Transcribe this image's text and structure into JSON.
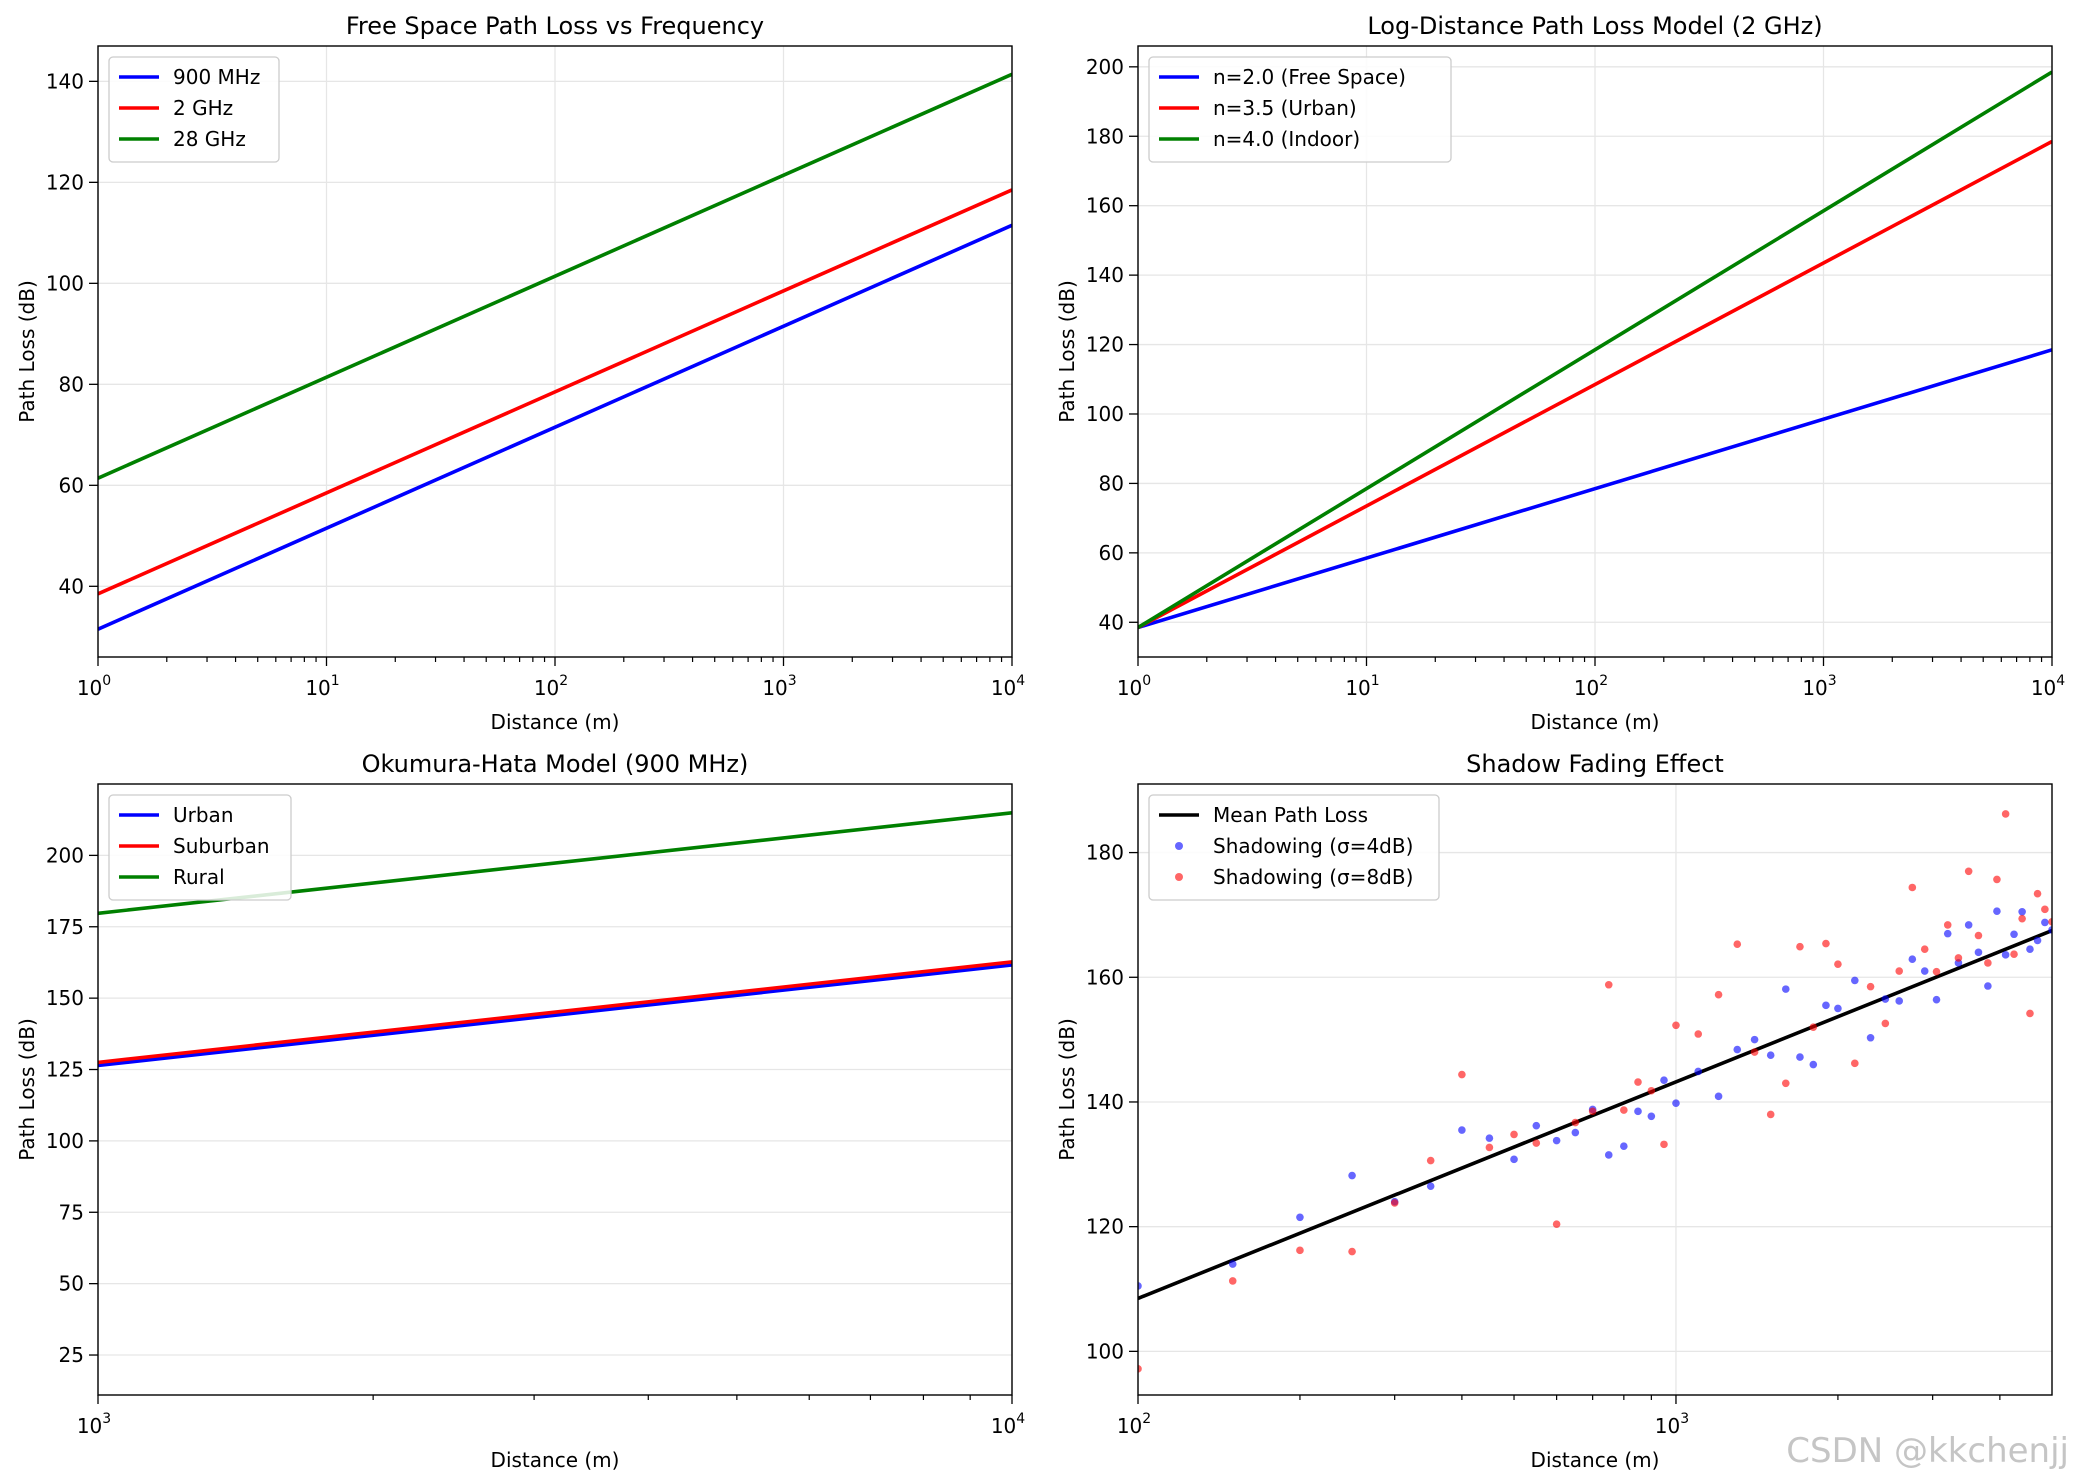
{
  "watermark": "CSDN @kkchenjj",
  "colors": {
    "blue": "#0000ff",
    "red": "#ff0000",
    "green": "#008000",
    "black": "#000000",
    "grid": "#e6e6e6"
  },
  "chart_data": [
    {
      "type": "line",
      "title": "Free Space Path Loss vs Frequency",
      "xlabel": "Distance (m)",
      "ylabel": "Path Loss (dB)",
      "xscale": "log",
      "xlim": [
        1,
        10000
      ],
      "ylim": [
        26,
        147
      ],
      "x_ticks": [
        {
          "base": "10",
          "exp": "0",
          "v": 1
        },
        {
          "base": "10",
          "exp": "1",
          "v": 10
        },
        {
          "base": "10",
          "exp": "2",
          "v": 100
        },
        {
          "base": "10",
          "exp": "3",
          "v": 1000
        },
        {
          "base": "10",
          "exp": "4",
          "v": 10000
        }
      ],
      "y_ticks": [
        40,
        60,
        80,
        100,
        120,
        140
      ],
      "legend": "top-left",
      "series": [
        {
          "name": "900 MHz",
          "color": "#0000ff",
          "x": [
            1,
            10000
          ],
          "y": [
            31.5,
            111.5
          ]
        },
        {
          "name": "2 GHz",
          "color": "#ff0000",
          "x": [
            1,
            10000
          ],
          "y": [
            38.5,
            118.5
          ]
        },
        {
          "name": "28 GHz",
          "color": "#008000",
          "x": [
            1,
            10000
          ],
          "y": [
            61.4,
            141.4
          ]
        }
      ]
    },
    {
      "type": "line",
      "title": "Log-Distance Path Loss Model (2 GHz)",
      "xlabel": "Distance (m)",
      "ylabel": "Path Loss (dB)",
      "xscale": "log",
      "xlim": [
        1,
        10000
      ],
      "ylim": [
        30,
        206
      ],
      "x_ticks": [
        {
          "base": "10",
          "exp": "0",
          "v": 1
        },
        {
          "base": "10",
          "exp": "1",
          "v": 10
        },
        {
          "base": "10",
          "exp": "2",
          "v": 100
        },
        {
          "base": "10",
          "exp": "3",
          "v": 1000
        },
        {
          "base": "10",
          "exp": "4",
          "v": 10000
        }
      ],
      "y_ticks": [
        40,
        60,
        80,
        100,
        120,
        140,
        160,
        180,
        200
      ],
      "legend": "top-left",
      "series": [
        {
          "name": "n=2.0 (Free Space)",
          "color": "#0000ff",
          "x": [
            1,
            10000
          ],
          "y": [
            38.5,
            118.5
          ]
        },
        {
          "name": "n=3.5 (Urban)",
          "color": "#ff0000",
          "x": [
            1,
            10000
          ],
          "y": [
            38.5,
            178.5
          ]
        },
        {
          "name": "n=4.0 (Indoor)",
          "color": "#008000",
          "x": [
            1,
            10000
          ],
          "y": [
            38.5,
            198.5
          ]
        }
      ]
    },
    {
      "type": "line",
      "title": "Okumura-Hata Model (900 MHz)",
      "xlabel": "Distance (m)",
      "ylabel": "Path Loss (dB)",
      "xscale": "log",
      "xlim": [
        1000,
        10000
      ],
      "ylim": [
        11,
        225
      ],
      "x_ticks": [
        {
          "base": "10",
          "exp": "3",
          "v": 1000
        },
        {
          "base": "10",
          "exp": "4",
          "v": 10000
        }
      ],
      "y_ticks": [
        25,
        50,
        75,
        100,
        125,
        150,
        175,
        200
      ],
      "legend": "top-left",
      "series": [
        {
          "name": "Urban",
          "color": "#0000ff",
          "x": [
            1000,
            10000
          ],
          "y": [
            126.4,
            161.6
          ]
        },
        {
          "name": "Suburban",
          "color": "#ff0000",
          "x": [
            1000,
            10000
          ],
          "y": [
            127.5,
            162.7
          ]
        },
        {
          "name": "Rural",
          "color": "#008000",
          "x": [
            1000,
            10000
          ],
          "y": [
            179.7,
            214.9
          ]
        }
      ]
    },
    {
      "type": "scatter",
      "title": "Shadow Fading Effect",
      "xlabel": "Distance (m)",
      "ylabel": "Path Loss (dB)",
      "xscale": "log",
      "xlim": [
        100,
        5000
      ],
      "ylim": [
        93,
        191
      ],
      "x_ticks": [
        {
          "base": "10",
          "exp": "2",
          "v": 100
        },
        {
          "base": "10",
          "exp": "3",
          "v": 1000
        }
      ],
      "y_ticks": [
        100,
        120,
        140,
        160,
        180
      ],
      "legend": "top-left",
      "series": [
        {
          "name": "Mean Path Loss",
          "kind": "line",
          "color": "#000000",
          "x": [
            100,
            5000
          ],
          "y": [
            108.5,
            167.5
          ]
        },
        {
          "name": "Shadowing (σ=4dB)",
          "kind": "scatter",
          "color": "#0000ff",
          "x": [
            100,
            150,
            200,
            250,
            300,
            350,
            400,
            450,
            500,
            550,
            600,
            650,
            700,
            750,
            800,
            850,
            900,
            950,
            1000,
            1100,
            1200,
            1300,
            1400,
            1500,
            1600,
            1700,
            1800,
            1900,
            2000,
            2150,
            2300,
            2450,
            2600,
            2750,
            2900,
            3050,
            3200,
            3350,
            3500,
            3650,
            3800,
            3950,
            4100,
            4250,
            4400,
            4550,
            4700,
            4850,
            5000
          ],
          "y": [
            110.5,
            114.0,
            121.5,
            128.2,
            124.0,
            126.5,
            135.5,
            134.2,
            130.8,
            136.2,
            133.8,
            135.1,
            138.8,
            131.5,
            132.9,
            138.5,
            137.7,
            143.5,
            139.8,
            144.9,
            140.9,
            148.4,
            150.0,
            147.5,
            158.1,
            147.2,
            146.0,
            155.5,
            155.0,
            159.5,
            150.3,
            156.5,
            156.2,
            162.9,
            161.0,
            156.4,
            167.0,
            162.3,
            168.4,
            164.0,
            158.6,
            170.6,
            163.6,
            166.9,
            170.5,
            164.5,
            165.9,
            168.8,
            167.6
          ]
        },
        {
          "name": "Shadowing (σ=8dB)",
          "kind": "scatter",
          "color": "#ff0000",
          "x": [
            100,
            150,
            200,
            250,
            300,
            350,
            400,
            450,
            500,
            550,
            600,
            650,
            700,
            750,
            800,
            850,
            900,
            950,
            1000,
            1100,
            1200,
            1300,
            1400,
            1500,
            1600,
            1700,
            1800,
            1900,
            2000,
            2150,
            2300,
            2450,
            2600,
            2750,
            2900,
            3050,
            3200,
            3350,
            3500,
            3650,
            3800,
            3950,
            4100,
            4250,
            4400,
            4550,
            4700,
            4850,
            5000
          ],
          "y": [
            97.2,
            111.3,
            116.2,
            116.0,
            123.8,
            130.6,
            144.4,
            132.7,
            134.8,
            133.4,
            120.4,
            136.7,
            138.5,
            158.8,
            138.7,
            143.2,
            141.8,
            133.2,
            152.3,
            150.9,
            157.2,
            165.3,
            148.0,
            138.0,
            143.0,
            164.9,
            152.0,
            165.4,
            162.1,
            146.2,
            158.5,
            152.6,
            161.0,
            174.4,
            164.5,
            160.9,
            168.4,
            163.1,
            177.0,
            166.7,
            162.3,
            175.7,
            186.2,
            163.7,
            169.4,
            154.2,
            173.4,
            170.9,
            168.9
          ]
        }
      ]
    }
  ]
}
